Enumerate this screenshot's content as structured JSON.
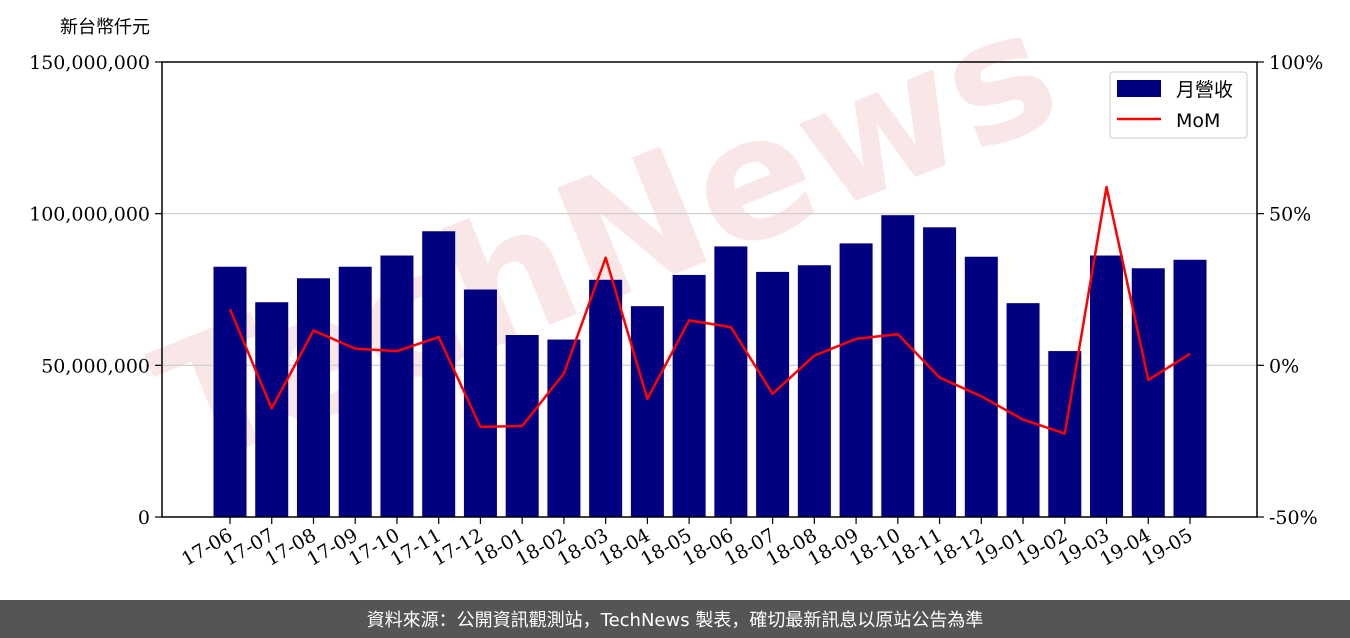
{
  "chart_data": {
    "type": "bar",
    "unit_label": "新台幣仟元",
    "categories": [
      "17-06",
      "17-07",
      "17-08",
      "17-09",
      "17-10",
      "17-11",
      "17-12",
      "18-01",
      "18-02",
      "18-03",
      "18-04",
      "18-05",
      "18-06",
      "18-07",
      "18-08",
      "18-09",
      "18-10",
      "18-11",
      "18-12",
      "19-01",
      "19-02",
      "19-03",
      "19-04",
      "19-05"
    ],
    "series": [
      {
        "name": "月營收",
        "axis": "left",
        "kind": "bar",
        "color": "#000080",
        "values": [
          82500000,
          70800000,
          78700000,
          82500000,
          86200000,
          94200000,
          75000000,
          60000000,
          58500000,
          78200000,
          69500000,
          79800000,
          89200000,
          80800000,
          83000000,
          90200000,
          99500000,
          95500000,
          85800000,
          70500000,
          54700000,
          86200000,
          82000000,
          84800000
        ]
      },
      {
        "name": "MoM",
        "axis": "right",
        "kind": "line",
        "color": "#ff0000",
        "values": [
          18.5,
          -14.2,
          11.5,
          5.5,
          4.7,
          9.3,
          -20.3,
          -20.0,
          -2.7,
          35.5,
          -11.1,
          14.8,
          12.6,
          -9.4,
          3.2,
          8.7,
          10.3,
          -4.0,
          -10.2,
          -17.9,
          -22.5,
          58.8,
          -4.8,
          3.8
        ]
      }
    ],
    "y_left": {
      "lim": [
        0,
        150000000
      ],
      "ticks": [
        "0",
        "50,000,000",
        "100,000,000",
        "150,000,000"
      ],
      "tick_values": [
        0,
        50000000,
        100000000,
        150000000
      ]
    },
    "y_right": {
      "lim": [
        -50,
        100
      ],
      "ticks": [
        "-50%",
        "0%",
        "50%",
        "100%"
      ],
      "tick_values": [
        -50,
        0,
        50,
        100
      ]
    },
    "grid": true,
    "legend": "top-right"
  },
  "watermark": "TechNews",
  "footer": {
    "text": "資料來源：公開資訊觀測站，TechNews 製表，確切最新訊息以原站公告為準"
  }
}
